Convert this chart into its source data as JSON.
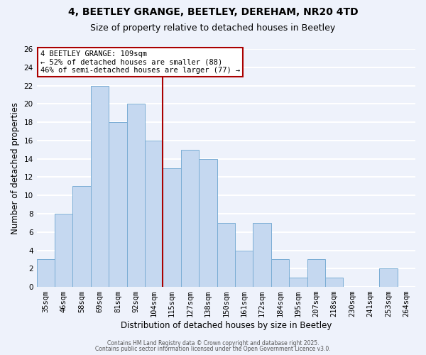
{
  "title1": "4, BEETLEY GRANGE, BEETLEY, DEREHAM, NR20 4TD",
  "title2": "Size of property relative to detached houses in Beetley",
  "xlabel": "Distribution of detached houses by size in Beetley",
  "ylabel": "Number of detached properties",
  "bar_labels": [
    "35sqm",
    "46sqm",
    "58sqm",
    "69sqm",
    "81sqm",
    "92sqm",
    "104sqm",
    "115sqm",
    "127sqm",
    "138sqm",
    "150sqm",
    "161sqm",
    "172sqm",
    "184sqm",
    "195sqm",
    "207sqm",
    "218sqm",
    "230sqm",
    "241sqm",
    "253sqm",
    "264sqm"
  ],
  "bar_values": [
    3,
    8,
    11,
    22,
    18,
    20,
    16,
    13,
    15,
    14,
    7,
    4,
    7,
    3,
    1,
    3,
    1,
    0,
    0,
    2,
    0
  ],
  "bar_color": "#c5d8f0",
  "bar_edgecolor": "#7aadd4",
  "background_color": "#eef2fb",
  "grid_color": "#ffffff",
  "ylim": [
    0,
    26
  ],
  "yticks": [
    0,
    2,
    4,
    6,
    8,
    10,
    12,
    14,
    16,
    18,
    20,
    22,
    24,
    26
  ],
  "vline_x": 6.5,
  "vline_color": "#aa0000",
  "annotation_title": "4 BEETLEY GRANGE: 109sqm",
  "annotation_line2": "← 52% of detached houses are smaller (88)",
  "annotation_line3": "46% of semi-detached houses are larger (77) →",
  "annotation_box_edgecolor": "#aa0000",
  "footer1": "Contains HM Land Registry data © Crown copyright and database right 2025.",
  "footer2": "Contains public sector information licensed under the Open Government Licence v3.0.",
  "title_fontsize": 10,
  "subtitle_fontsize": 9,
  "tick_fontsize": 7.5,
  "label_fontsize": 8.5,
  "ann_fontsize": 7.5
}
